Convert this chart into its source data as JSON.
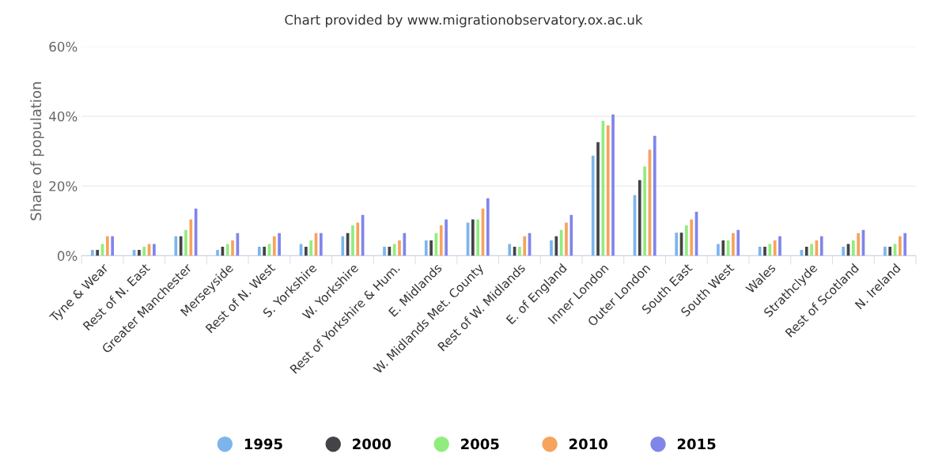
{
  "chart_data": {
    "type": "bar",
    "title": "Chart provided by www.migrationobservatory.ox.ac.uk",
    "ylabel": "Share of population",
    "categories": [
      "Tyne & Wear",
      "Rest of N. East",
      "Greater Manchester",
      "Merseyside",
      "Rest of N. West",
      "S. Yorkshire",
      "W. Yorkshire",
      "Rest of Yorkshire & Hum.",
      "E. Midlands",
      "W. Midlands Met. County",
      "Rest of W. Midlands",
      "E. of England",
      "Inner London",
      "Outer London",
      "South East",
      "South West",
      "Wales",
      "Strathclyde",
      "Rest of Scotland",
      "N. Ireland"
    ],
    "series": [
      {
        "name": "1995",
        "color": "#7cb5ec",
        "values": [
          1.7,
          1.7,
          5.6,
          1.7,
          2.6,
          3.4,
          5.6,
          2.6,
          4.4,
          9.5,
          3.4,
          4.4,
          28.7,
          17.4,
          6.6,
          3.4,
          2.6,
          1.7,
          2.6,
          2.6
        ]
      },
      {
        "name": "2000",
        "color": "#434348",
        "values": [
          1.7,
          1.7,
          5.6,
          2.6,
          2.6,
          2.6,
          6.5,
          2.6,
          4.4,
          10.4,
          2.6,
          5.6,
          32.6,
          21.7,
          6.6,
          4.4,
          2.6,
          2.6,
          3.4,
          2.6
        ]
      },
      {
        "name": "2005",
        "color": "#90ed7d",
        "values": [
          3.4,
          2.6,
          7.4,
          3.4,
          3.4,
          4.4,
          8.7,
          3.4,
          6.5,
          10.4,
          2.6,
          7.4,
          38.7,
          25.6,
          8.7,
          4.4,
          3.4,
          3.4,
          4.4,
          3.4
        ]
      },
      {
        "name": "2010",
        "color": "#f7a35c",
        "values": [
          5.6,
          3.4,
          10.4,
          4.4,
          5.6,
          6.5,
          9.5,
          4.4,
          8.7,
          13.5,
          5.6,
          9.5,
          37.4,
          30.4,
          10.4,
          6.5,
          4.4,
          4.4,
          6.5,
          5.6
        ]
      },
      {
        "name": "2015",
        "color": "#8085e9",
        "values": [
          5.6,
          3.4,
          13.5,
          6.5,
          6.5,
          6.5,
          11.7,
          6.5,
          10.4,
          16.5,
          6.5,
          11.7,
          40.5,
          34.4,
          12.6,
          7.4,
          5.6,
          5.6,
          7.4,
          6.5
        ]
      }
    ],
    "ylim": [
      0,
      60
    ],
    "yticks": [
      {
        "value": 0,
        "label": "0%"
      },
      {
        "value": 20,
        "label": "20%"
      },
      {
        "value": 40,
        "label": "40%"
      },
      {
        "value": 60,
        "label": "60%"
      }
    ],
    "grid": "y",
    "legend": "bottom"
  }
}
